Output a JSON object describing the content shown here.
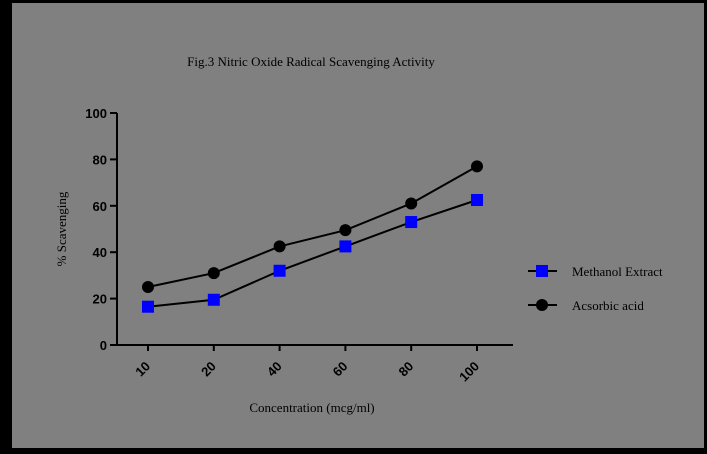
{
  "chart_data": {
    "type": "line",
    "title": "Fig.3  Nitric Oxide Radical Scavenging Activity",
    "xlabel": "Concentration (mcg/ml)",
    "ylabel": "% Scavenging",
    "categories": [
      "10",
      "20",
      "40",
      "60",
      "80",
      "100"
    ],
    "ylim": [
      0,
      100
    ],
    "yticks": [
      "0",
      "20",
      "40",
      "60",
      "80",
      "100"
    ],
    "grid": false,
    "legend_position": "right",
    "series": [
      {
        "name": "Methanol Extract",
        "marker": "square",
        "color": "#0000ff",
        "values": [
          16.5,
          19.5,
          32,
          42.5,
          53,
          62.5
        ]
      },
      {
        "name": "Acsorbic acid",
        "marker": "circle",
        "color": "#000000",
        "values": [
          25,
          31,
          42.5,
          49.5,
          61,
          77
        ]
      }
    ],
    "background_color": "#808080"
  }
}
